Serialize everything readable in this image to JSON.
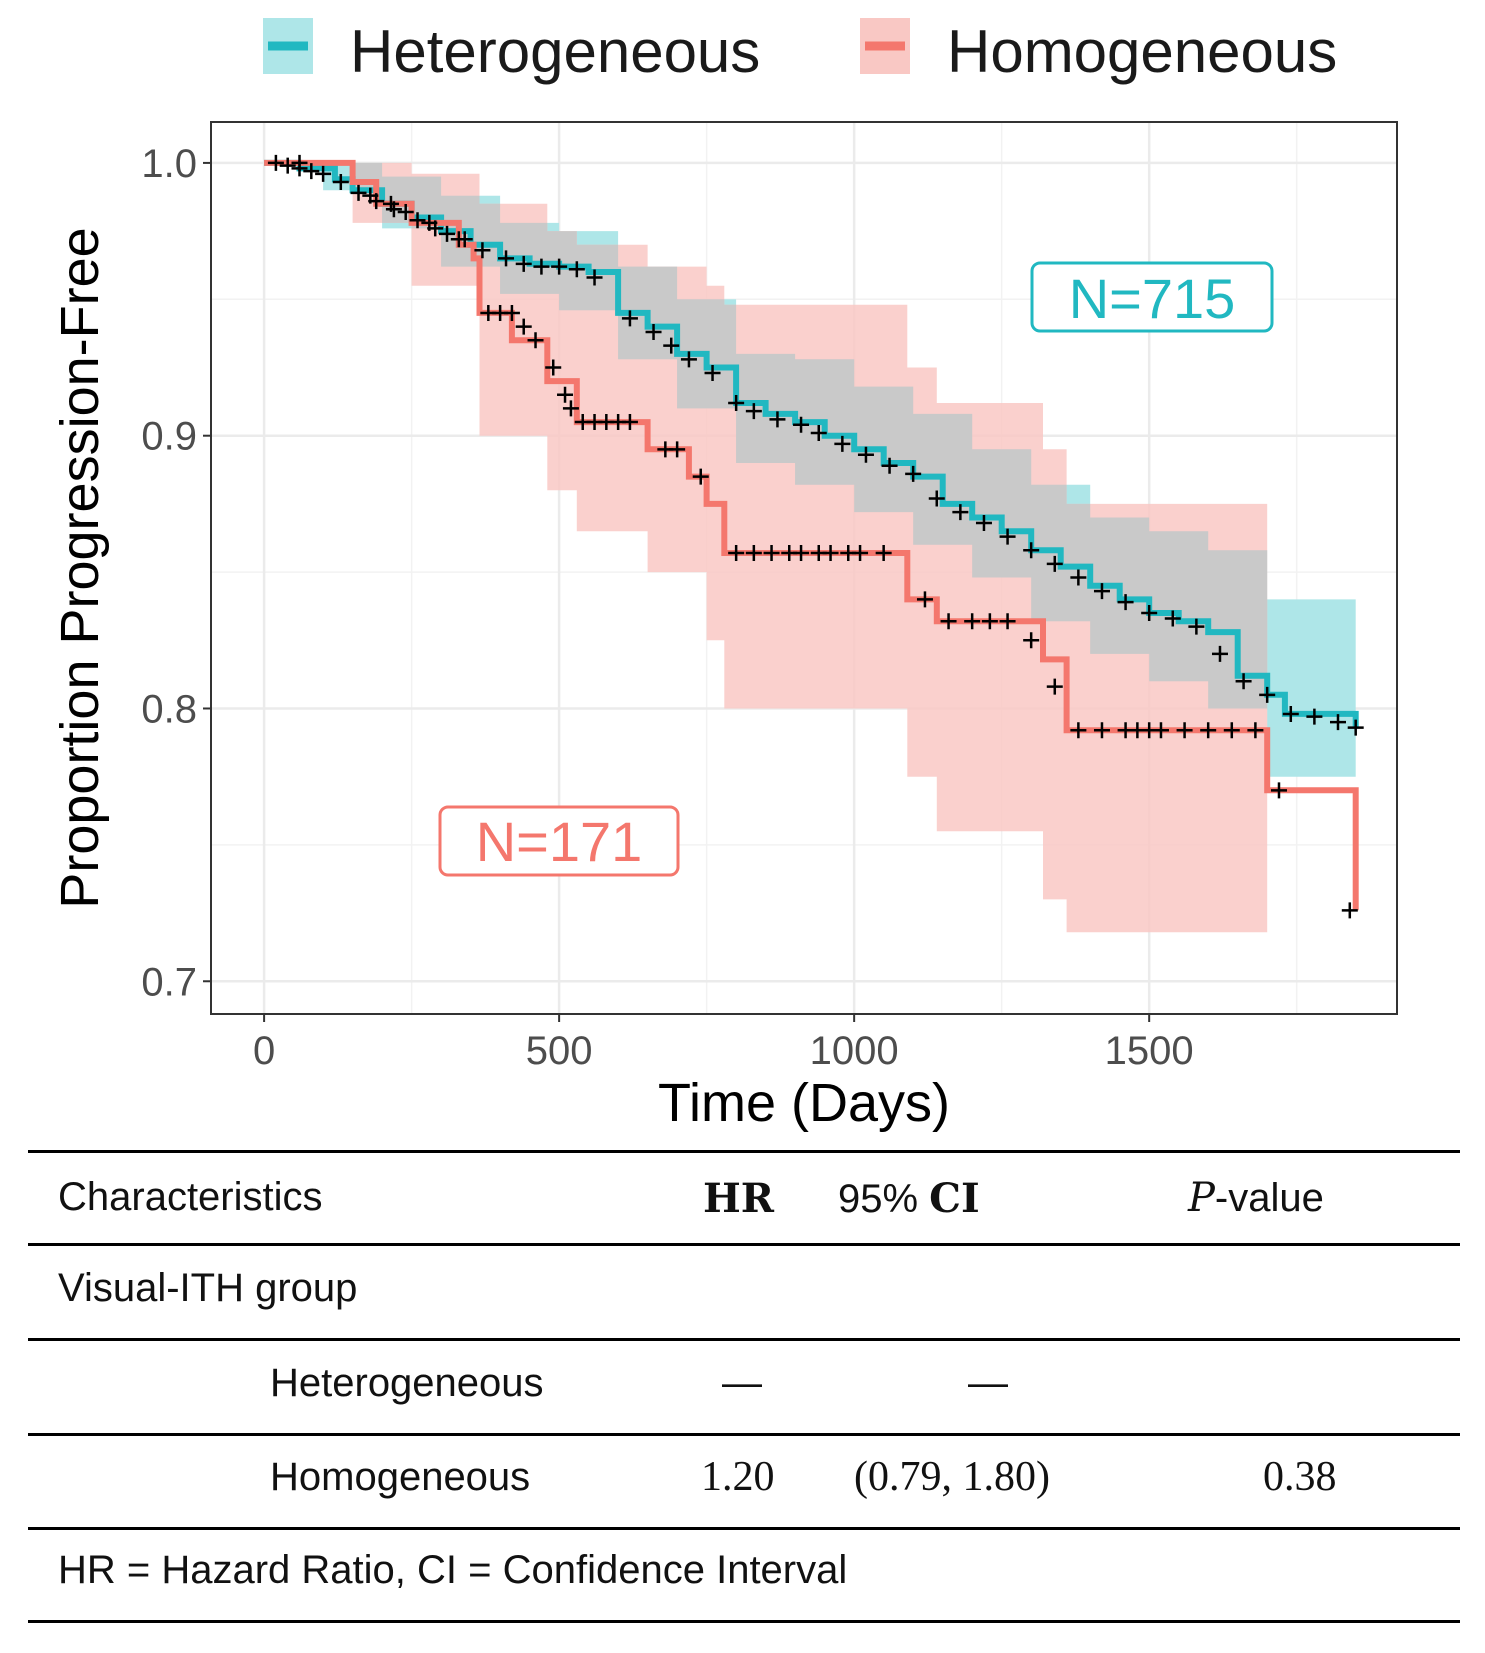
{
  "chart_data": {
    "type": "line",
    "subtype": "kaplan-meier",
    "xlabel": "Time (Days)",
    "ylabel": "Proportion Progression-Free",
    "xlim": [
      -90,
      1920
    ],
    "ylim": [
      0.688,
      1.015
    ],
    "x_ticks": [
      0,
      500,
      1000,
      1500
    ],
    "y_ticks": [
      0.7,
      0.8,
      0.9,
      1.0
    ],
    "x_tick_labels": [
      "0",
      "500",
      "1000",
      "1500"
    ],
    "y_tick_labels": [
      "0.7",
      "0.8",
      "0.9",
      "1.0"
    ],
    "grid": true,
    "legend_position": "top",
    "series": [
      {
        "name": "Heterogeneous",
        "color": "#21b8c1",
        "fill": "#aee6e8",
        "n_label": "N=715",
        "steps": [
          [
            0,
            1.0
          ],
          [
            60,
            0.998
          ],
          [
            120,
            0.994
          ],
          [
            150,
            0.99
          ],
          [
            200,
            0.985
          ],
          [
            250,
            0.98
          ],
          [
            300,
            0.975
          ],
          [
            350,
            0.97
          ],
          [
            400,
            0.965
          ],
          [
            450,
            0.963
          ],
          [
            500,
            0.962
          ],
          [
            550,
            0.96
          ],
          [
            600,
            0.945
          ],
          [
            650,
            0.94
          ],
          [
            700,
            0.93
          ],
          [
            750,
            0.925
          ],
          [
            800,
            0.912
          ],
          [
            850,
            0.908
          ],
          [
            900,
            0.905
          ],
          [
            950,
            0.9
          ],
          [
            1000,
            0.895
          ],
          [
            1050,
            0.89
          ],
          [
            1100,
            0.885
          ],
          [
            1150,
            0.875
          ],
          [
            1200,
            0.87
          ],
          [
            1250,
            0.865
          ],
          [
            1300,
            0.858
          ],
          [
            1350,
            0.852
          ],
          [
            1400,
            0.845
          ],
          [
            1450,
            0.84
          ],
          [
            1500,
            0.835
          ],
          [
            1550,
            0.832
          ],
          [
            1600,
            0.828
          ],
          [
            1650,
            0.812
          ],
          [
            1700,
            0.805
          ],
          [
            1730,
            0.798
          ],
          [
            1850,
            0.793
          ]
        ],
        "ci_lower": [
          [
            0,
            1.0
          ],
          [
            100,
            0.99
          ],
          [
            200,
            0.976
          ],
          [
            300,
            0.962
          ],
          [
            400,
            0.952
          ],
          [
            500,
            0.946
          ],
          [
            600,
            0.928
          ],
          [
            700,
            0.91
          ],
          [
            800,
            0.89
          ],
          [
            900,
            0.882
          ],
          [
            1000,
            0.872
          ],
          [
            1100,
            0.86
          ],
          [
            1200,
            0.848
          ],
          [
            1300,
            0.832
          ],
          [
            1400,
            0.82
          ],
          [
            1500,
            0.81
          ],
          [
            1600,
            0.8
          ],
          [
            1700,
            0.775
          ],
          [
            1850,
            0.77
          ]
        ],
        "ci_upper": [
          [
            0,
            1.0
          ],
          [
            100,
            1.0
          ],
          [
            200,
            0.995
          ],
          [
            300,
            0.988
          ],
          [
            400,
            0.978
          ],
          [
            500,
            0.975
          ],
          [
            600,
            0.962
          ],
          [
            700,
            0.95
          ],
          [
            800,
            0.93
          ],
          [
            900,
            0.928
          ],
          [
            1000,
            0.918
          ],
          [
            1100,
            0.908
          ],
          [
            1200,
            0.895
          ],
          [
            1300,
            0.882
          ],
          [
            1400,
            0.87
          ],
          [
            1500,
            0.865
          ],
          [
            1600,
            0.858
          ],
          [
            1700,
            0.84
          ],
          [
            1850,
            0.83
          ]
        ],
        "censor_marks": [
          [
            20,
            1.0
          ],
          [
            40,
            0.999
          ],
          [
            60,
            0.998
          ],
          [
            80,
            0.997
          ],
          [
            100,
            0.996
          ],
          [
            130,
            0.993
          ],
          [
            160,
            0.989
          ],
          [
            190,
            0.986
          ],
          [
            220,
            0.983
          ],
          [
            260,
            0.979
          ],
          [
            290,
            0.976
          ],
          [
            330,
            0.972
          ],
          [
            370,
            0.968
          ],
          [
            410,
            0.965
          ],
          [
            440,
            0.963
          ],
          [
            470,
            0.962
          ],
          [
            500,
            0.962
          ],
          [
            530,
            0.961
          ],
          [
            560,
            0.958
          ],
          [
            620,
            0.943
          ],
          [
            660,
            0.938
          ],
          [
            690,
            0.933
          ],
          [
            720,
            0.928
          ],
          [
            760,
            0.923
          ],
          [
            800,
            0.912
          ],
          [
            830,
            0.909
          ],
          [
            870,
            0.906
          ],
          [
            910,
            0.904
          ],
          [
            940,
            0.901
          ],
          [
            980,
            0.897
          ],
          [
            1020,
            0.893
          ],
          [
            1060,
            0.889
          ],
          [
            1100,
            0.886
          ],
          [
            1140,
            0.877
          ],
          [
            1180,
            0.872
          ],
          [
            1220,
            0.868
          ],
          [
            1260,
            0.863
          ],
          [
            1300,
            0.858
          ],
          [
            1340,
            0.853
          ],
          [
            1380,
            0.848
          ],
          [
            1420,
            0.843
          ],
          [
            1460,
            0.839
          ],
          [
            1500,
            0.835
          ],
          [
            1540,
            0.833
          ],
          [
            1580,
            0.83
          ],
          [
            1620,
            0.82
          ],
          [
            1660,
            0.81
          ],
          [
            1700,
            0.805
          ],
          [
            1740,
            0.798
          ],
          [
            1780,
            0.797
          ],
          [
            1820,
            0.795
          ],
          [
            1850,
            0.793
          ]
        ]
      },
      {
        "name": "Homogeneous",
        "color": "#f4776d",
        "fill": "#f9c8c4",
        "n_label": "N=171",
        "steps": [
          [
            0,
            1.0
          ],
          [
            150,
            0.993
          ],
          [
            190,
            0.985
          ],
          [
            250,
            0.978
          ],
          [
            330,
            0.97
          ],
          [
            355,
            0.965
          ],
          [
            365,
            0.945
          ],
          [
            420,
            0.935
          ],
          [
            480,
            0.92
          ],
          [
            530,
            0.905
          ],
          [
            650,
            0.895
          ],
          [
            720,
            0.885
          ],
          [
            750,
            0.875
          ],
          [
            780,
            0.857
          ],
          [
            1090,
            0.84
          ],
          [
            1140,
            0.832
          ],
          [
            1320,
            0.818
          ],
          [
            1360,
            0.792
          ],
          [
            1700,
            0.77
          ],
          [
            1850,
            0.726
          ]
        ],
        "ci_lower": [
          [
            0,
            1.0
          ],
          [
            150,
            0.978
          ],
          [
            250,
            0.955
          ],
          [
            365,
            0.9
          ],
          [
            480,
            0.88
          ],
          [
            530,
            0.865
          ],
          [
            650,
            0.85
          ],
          [
            750,
            0.825
          ],
          [
            780,
            0.8
          ],
          [
            1090,
            0.775
          ],
          [
            1140,
            0.755
          ],
          [
            1320,
            0.73
          ],
          [
            1360,
            0.718
          ],
          [
            1700,
            0.718
          ]
        ],
        "ci_upper": [
          [
            0,
            1.0
          ],
          [
            150,
            1.0
          ],
          [
            250,
            0.996
          ],
          [
            365,
            0.985
          ],
          [
            480,
            0.975
          ],
          [
            530,
            0.97
          ],
          [
            650,
            0.962
          ],
          [
            750,
            0.955
          ],
          [
            780,
            0.948
          ],
          [
            1090,
            0.925
          ],
          [
            1140,
            0.912
          ],
          [
            1320,
            0.895
          ],
          [
            1360,
            0.875
          ],
          [
            1700,
            0.875
          ]
        ],
        "censor_marks": [
          [
            60,
            1.0
          ],
          [
            180,
            0.988
          ],
          [
            215,
            0.985
          ],
          [
            240,
            0.982
          ],
          [
            280,
            0.978
          ],
          [
            310,
            0.974
          ],
          [
            340,
            0.972
          ],
          [
            380,
            0.945
          ],
          [
            400,
            0.945
          ],
          [
            420,
            0.945
          ],
          [
            440,
            0.94
          ],
          [
            460,
            0.935
          ],
          [
            490,
            0.925
          ],
          [
            510,
            0.915
          ],
          [
            520,
            0.91
          ],
          [
            540,
            0.905
          ],
          [
            560,
            0.905
          ],
          [
            580,
            0.905
          ],
          [
            600,
            0.905
          ],
          [
            620,
            0.905
          ],
          [
            680,
            0.895
          ],
          [
            700,
            0.895
          ],
          [
            740,
            0.885
          ],
          [
            800,
            0.857
          ],
          [
            830,
            0.857
          ],
          [
            860,
            0.857
          ],
          [
            890,
            0.857
          ],
          [
            910,
            0.857
          ],
          [
            940,
            0.857
          ],
          [
            960,
            0.857
          ],
          [
            990,
            0.857
          ],
          [
            1010,
            0.857
          ],
          [
            1050,
            0.857
          ],
          [
            1120,
            0.84
          ],
          [
            1160,
            0.832
          ],
          [
            1200,
            0.832
          ],
          [
            1230,
            0.832
          ],
          [
            1260,
            0.832
          ],
          [
            1300,
            0.825
          ],
          [
            1340,
            0.808
          ],
          [
            1380,
            0.792
          ],
          [
            1420,
            0.792
          ],
          [
            1460,
            0.792
          ],
          [
            1480,
            0.792
          ],
          [
            1500,
            0.792
          ],
          [
            1520,
            0.792
          ],
          [
            1560,
            0.792
          ],
          [
            1600,
            0.792
          ],
          [
            1640,
            0.792
          ],
          [
            1680,
            0.792
          ],
          [
            1720,
            0.77
          ],
          [
            1840,
            0.726
          ]
        ]
      }
    ]
  },
  "table": {
    "header": {
      "characteristics": "Characteristics",
      "hr": "HR",
      "ci_prefix": "95% ",
      "ci": "CI",
      "p_italic": "P",
      "p_rest": "-value"
    },
    "group_label": "Visual-ITH group",
    "rows": [
      {
        "label": "Heterogeneous",
        "hr": "—",
        "ci": "—",
        "p": ""
      },
      {
        "label": "Homogeneous",
        "hr": "1.20",
        "ci": "(0.79, 1.80)",
        "p": "0.38"
      }
    ],
    "footnote": "HR = Hazard Ratio, CI  = Confidence Interval"
  }
}
